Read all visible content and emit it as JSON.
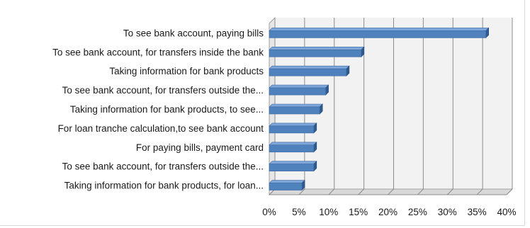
{
  "chart_data": {
    "type": "bar",
    "orientation": "horizontal",
    "categories": [
      "To see bank account, paying bills",
      "To see bank account, for transfers inside the bank",
      "Taking information for bank products",
      "To see bank account, for transfers outside the...",
      "Taking information for bank products, to see...",
      "For loan tranche calculation,to see bank account",
      "For paying bills, payment card",
      "To see bank account, for transfers outside the...",
      "Taking information for bank products, for loan..."
    ],
    "values": [
      36.5,
      15.5,
      13.0,
      9.5,
      8.5,
      7.5,
      7.5,
      7.5,
      5.5
    ],
    "xlim": [
      0,
      40
    ],
    "ticks": [
      0,
      5,
      10,
      15,
      20,
      25,
      30,
      35,
      40
    ],
    "tick_labels": [
      "0%",
      "5%",
      "10%",
      "15%",
      "20%",
      "25%",
      "30%",
      "35%",
      "40%"
    ],
    "grid": true,
    "legend": "none",
    "title": "",
    "xlabel": "",
    "ylabel": "",
    "colors": {
      "bar_fill": "#4f81bd",
      "bar_top": "#7ea6d9",
      "bar_end": "#2f5a8f",
      "grid": "#8c8c8c",
      "wall": "#f2f2f2",
      "floor": "#d9d9d9"
    }
  }
}
